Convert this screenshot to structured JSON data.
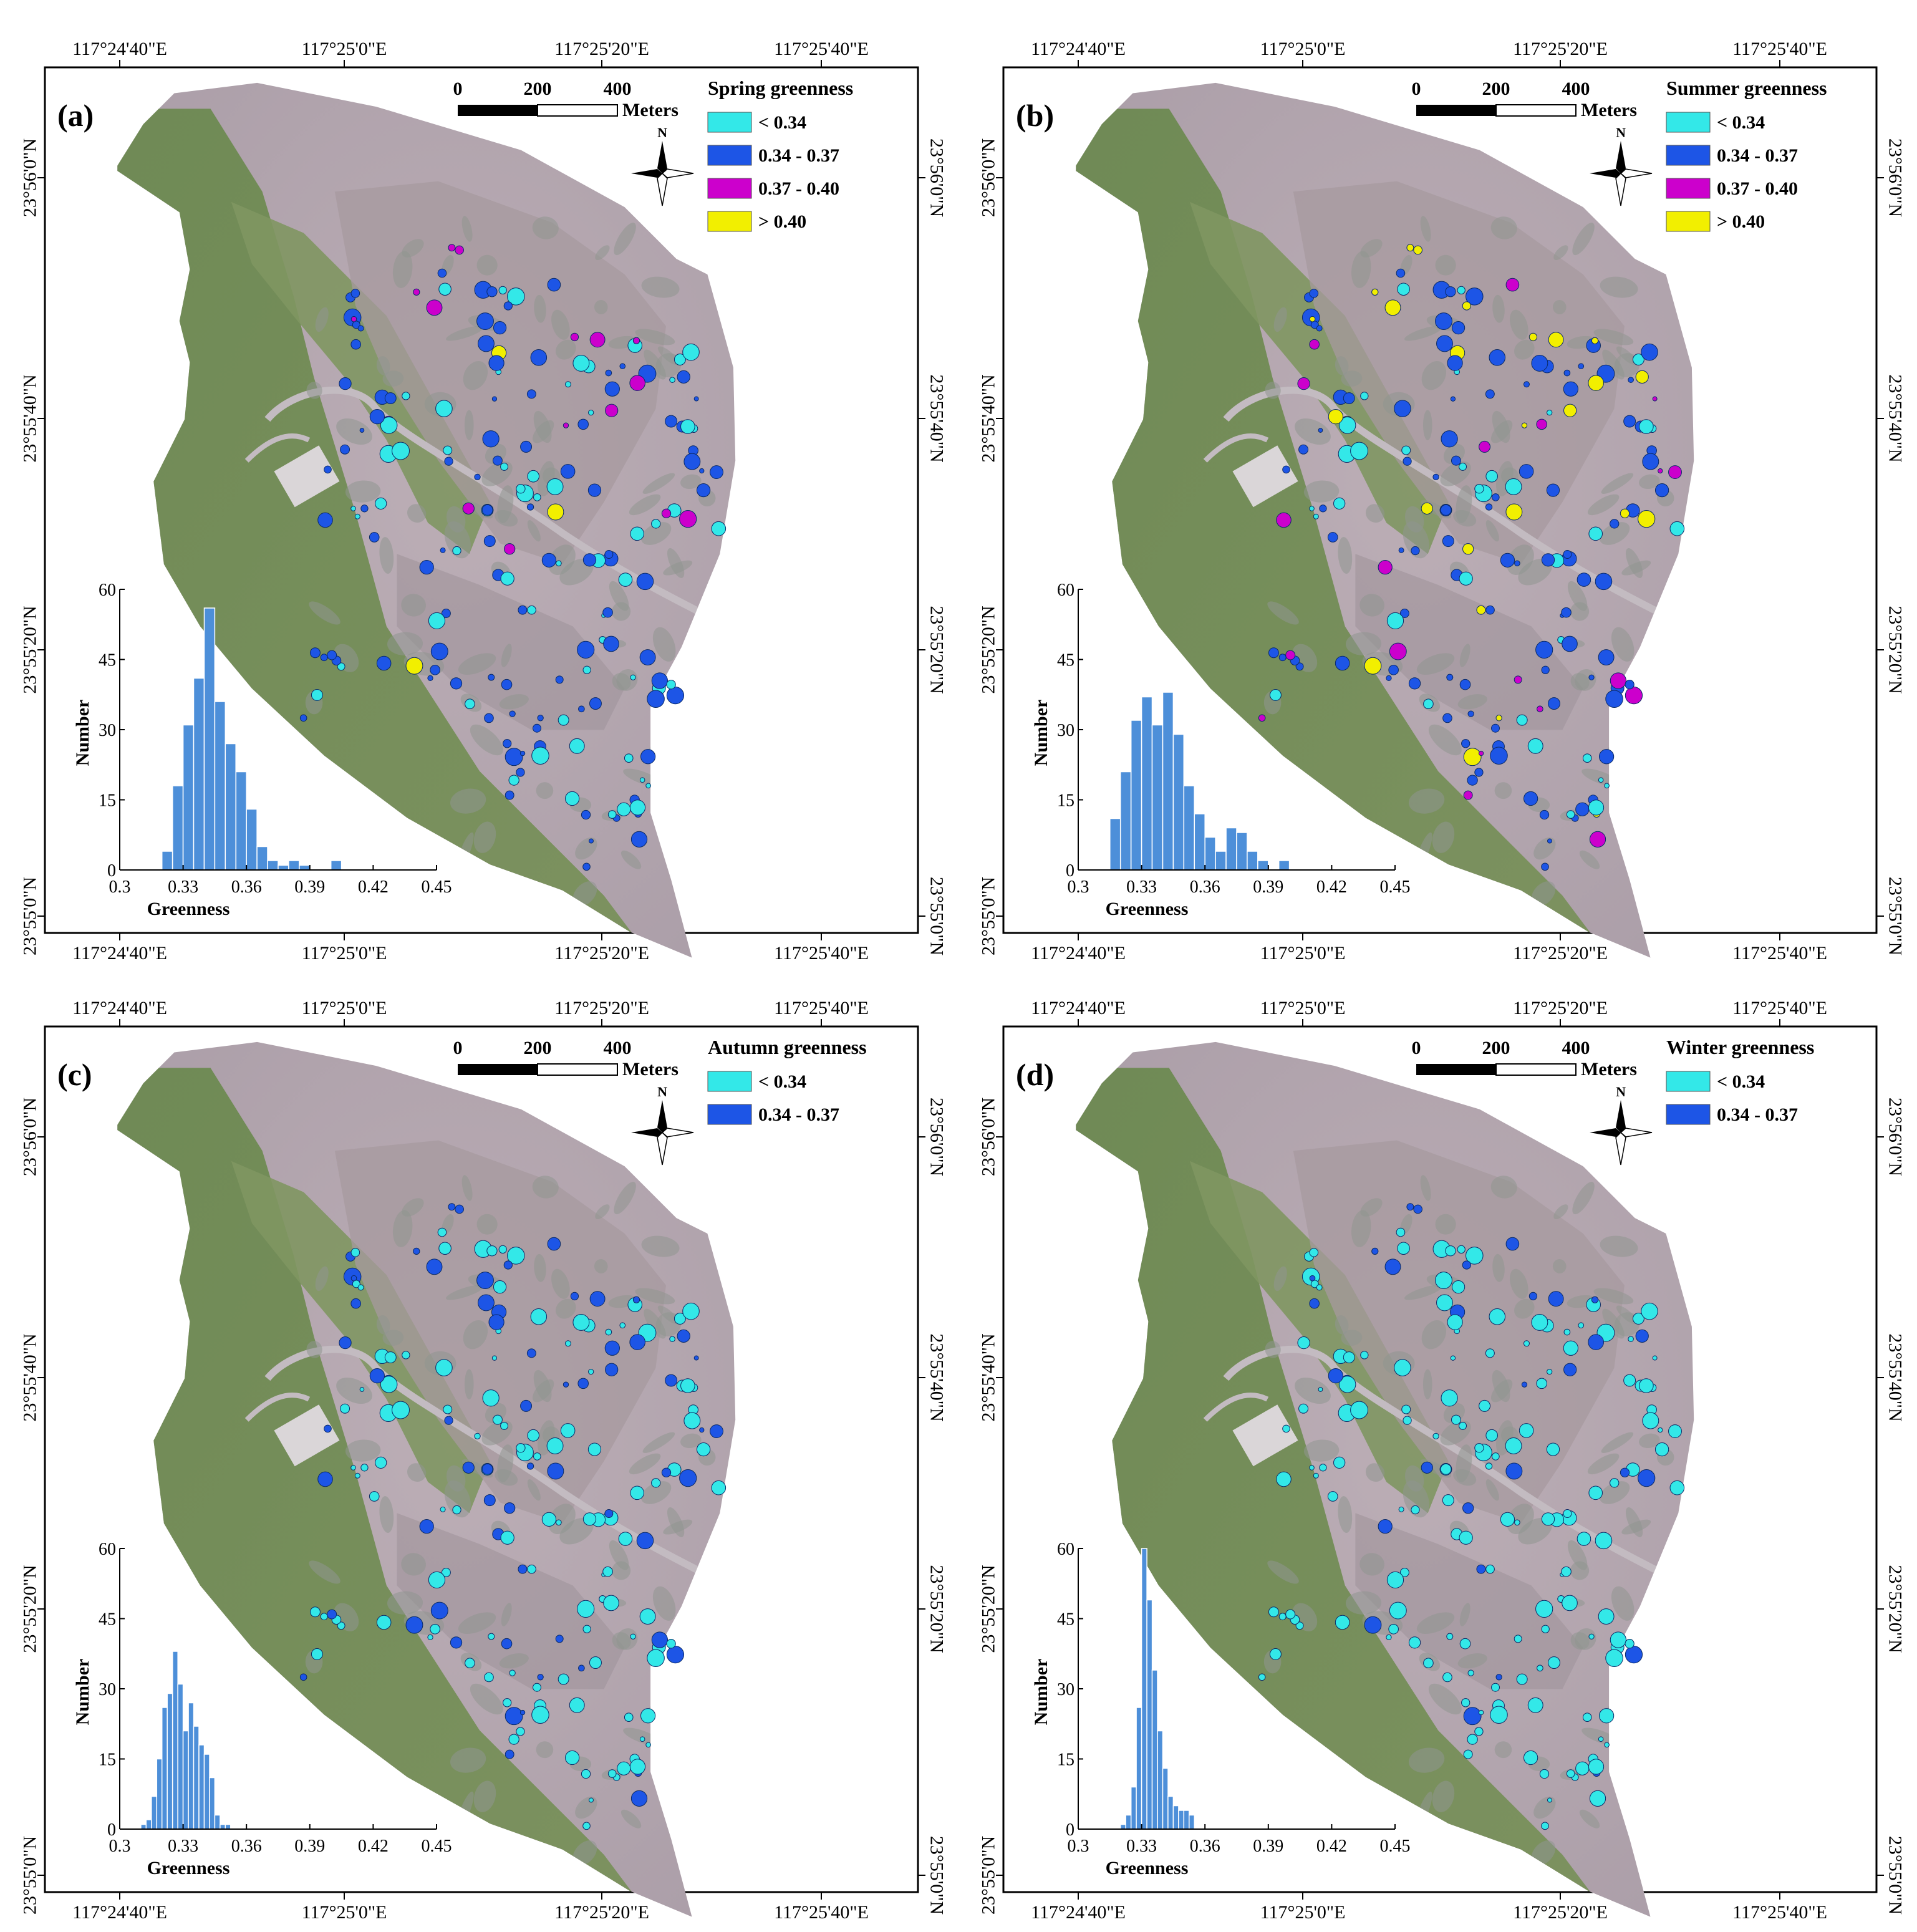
{
  "lon_labels": [
    "117°24'40\"E",
    "117°25'0\"E",
    "117°25'20\"E",
    "117°25'40\"E"
  ],
  "lat_labels": [
    "23°56'0\"N",
    "23°55'40\"N",
    "23°55'20\"N",
    "23°55'0\"N"
  ],
  "scale_bar": {
    "ticks": [
      "0",
      "200",
      "400"
    ],
    "unit": "Meters"
  },
  "north_arrow_label": "N",
  "legend_classes": [
    {
      "label": "< 0.34",
      "color": "#33e8e8"
    },
    {
      "label": "0.34 - 0.37",
      "color": "#1d55e6"
    },
    {
      "label": "0.37 - 0.40",
      "color": "#cc00cc"
    },
    {
      "label": "> 0.40",
      "color": "#f2ef00"
    }
  ],
  "colors": {
    "mudflat": "#b5a9b1",
    "forest_dark": "#8f9590",
    "vegetation": "#738a5f",
    "histogram_bar": "#4d8fd9"
  },
  "panels": [
    {
      "letter": "(a)",
      "legend_title": "Spring greenness",
      "legend_class_count": 4
    },
    {
      "letter": "(b)",
      "legend_title": "Summer greenness",
      "legend_class_count": 4
    },
    {
      "letter": "(c)",
      "legend_title": "Autumn greenness",
      "legend_class_count": 2
    },
    {
      "letter": "(d)",
      "legend_title": "Winter greenness",
      "legend_class_count": 2
    }
  ],
  "chart_data": [
    {
      "type": "bar",
      "panel": "(a)",
      "xlabel": "Greenness",
      "ylabel": "Number",
      "x_ticks": [
        "0.3",
        "0.33",
        "0.36",
        "0.39",
        "0.42",
        "0.45"
      ],
      "xlim": [
        0.3,
        0.45
      ],
      "y_ticks": [
        "0",
        "15",
        "30",
        "45",
        "60"
      ],
      "ylim": [
        0,
        60
      ],
      "bin_start": 0.32,
      "bin_width": 0.005,
      "values": [
        4,
        18,
        31,
        41,
        56,
        36,
        27,
        21,
        13,
        5,
        2,
        1,
        2,
        1,
        0,
        0,
        2,
        0
      ]
    },
    {
      "type": "bar",
      "panel": "(b)",
      "xlabel": "Greenness",
      "ylabel": "Number",
      "x_ticks": [
        "0.3",
        "0.33",
        "0.36",
        "0.39",
        "0.42",
        "0.45"
      ],
      "xlim": [
        0.3,
        0.45
      ],
      "y_ticks": [
        "0",
        "15",
        "30",
        "45",
        "60"
      ],
      "ylim": [
        0,
        60
      ],
      "bin_start": 0.315,
      "bin_width": 0.005,
      "values": [
        11,
        21,
        32,
        37,
        31,
        38,
        29,
        18,
        12,
        7,
        4,
        9,
        8,
        4,
        2,
        0,
        2
      ]
    },
    {
      "type": "bar",
      "panel": "(c)",
      "xlabel": "Greenness",
      "ylabel": "Number",
      "x_ticks": [
        "0.3",
        "0.33",
        "0.36",
        "0.39",
        "0.42",
        "0.45"
      ],
      "xlim": [
        0.3,
        0.45
      ],
      "y_ticks": [
        "0",
        "15",
        "30",
        "45",
        "60"
      ],
      "ylim": [
        0,
        60
      ],
      "bin_start": 0.31,
      "bin_width": 0.0025,
      "values": [
        1,
        2,
        7,
        15,
        26,
        29,
        38,
        31,
        21,
        27,
        22,
        18,
        16,
        11,
        3,
        1,
        1
      ]
    },
    {
      "type": "bar",
      "panel": "(d)",
      "xlabel": "Greenness",
      "ylabel": "Number",
      "x_ticks": [
        "0.3",
        "0.33",
        "0.36",
        "0.39",
        "0.42",
        "0.45"
      ],
      "xlim": [
        0.3,
        0.45
      ],
      "y_ticks": [
        "0",
        "15",
        "30",
        "45",
        "60"
      ],
      "ylim": [
        0,
        60
      ],
      "bin_start": 0.32,
      "bin_width": 0.0025,
      "values": [
        1,
        3,
        9,
        26,
        60,
        49,
        34,
        21,
        13,
        7,
        5,
        4,
        4,
        3
      ]
    }
  ]
}
